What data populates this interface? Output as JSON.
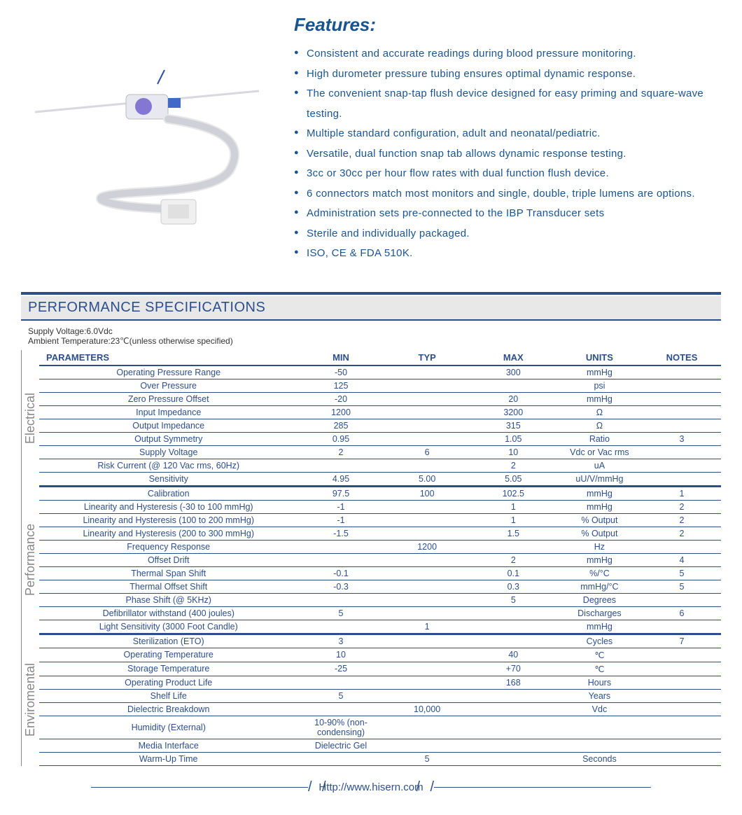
{
  "colors": {
    "primary": "#1a5490",
    "tableBlue": "#2c4f8c",
    "grayLabel": "#888888",
    "bgGray": "#e8e8e8",
    "white": "#ffffff"
  },
  "features": {
    "title": "Features:",
    "items": [
      "Consistent and accurate readings during blood pressure monitoring.",
      "High durometer pressure tubing ensures optimal dynamic response.",
      "The convenient snap-tap flush device designed for easy priming and square-wave testing.",
      "Multiple standard configuration, adult and neonatal/pediatric.",
      "Versatile, dual function snap tab allows dynamic response testing.",
      "3cc or 30cc per hour flow rates with dual function flush device.",
      "6 connectors match most monitors and single, double, triple lumens are options.",
      "Administration sets pre-connected to the IBP Transducer sets",
      "Sterile and individually packaged.",
      "ISO, CE & FDA 510K."
    ]
  },
  "specSection": {
    "title": "PERFORMANCE SPECIFICATIONS",
    "conditions": [
      "Supply Voltage:6.0Vdc",
      "Ambient Temperature:23℃(unless otherwise specified)"
    ],
    "headers": [
      "PARAMETERS",
      "MIN",
      "TYP",
      "MAX",
      "UNITS",
      "NOTES"
    ],
    "categories": [
      {
        "label": "Electrical",
        "rows": [
          {
            "param": "Operating Pressure Range",
            "min": "-50",
            "typ": "",
            "max": "300",
            "units": "mmHg",
            "notes": ""
          },
          {
            "param": "Over  Pressure",
            "min": "125",
            "typ": "",
            "max": "",
            "units": "psi",
            "notes": ""
          },
          {
            "param": "Zero Pressure Offset",
            "min": "-20",
            "typ": "",
            "max": "20",
            "units": "mmHg",
            "notes": ""
          },
          {
            "param": "Input Impedance",
            "min": "1200",
            "typ": "",
            "max": "3200",
            "units": "Ω",
            "notes": ""
          },
          {
            "param": "Output Impedance",
            "min": "285",
            "typ": "",
            "max": "315",
            "units": "Ω",
            "notes": ""
          },
          {
            "param": "Output Symmetry",
            "min": "0.95",
            "typ": "",
            "max": "1.05",
            "units": "Ratio",
            "notes": "3"
          },
          {
            "param": "Supply Voltage",
            "min": "2",
            "typ": "6",
            "max": "10",
            "units": "Vdc or Vac rms",
            "notes": ""
          },
          {
            "param": "Risk Current (@ 120 Vac rms, 60Hz)",
            "min": "",
            "typ": "",
            "max": "2",
            "units": "uA",
            "notes": ""
          },
          {
            "param": "Sensitivity",
            "min": "4.95",
            "typ": "5.00",
            "max": "5.05",
            "units": "uU/V/mmHg",
            "notes": ""
          }
        ]
      },
      {
        "label": "Performance",
        "rows": [
          {
            "param": "Calibration",
            "min": "97.5",
            "typ": "100",
            "max": "102.5",
            "units": "mmHg",
            "notes": "1"
          },
          {
            "param": "Linearity and Hysteresis (-30 to 100 mmHg)",
            "min": "-1",
            "typ": "",
            "max": "1",
            "units": "mmHg",
            "notes": "2"
          },
          {
            "param": "Linearity and Hysteresis (100 to 200 mmHg)",
            "min": "-1",
            "typ": "",
            "max": "1",
            "units": "% Output",
            "notes": "2"
          },
          {
            "param": "Linearity and Hysteresis (200 to 300 mmHg)",
            "min": "-1.5",
            "typ": "",
            "max": "1.5",
            "units": "% Output",
            "notes": "2"
          },
          {
            "param": "Frequency Response",
            "min": "",
            "typ": "1200",
            "max": "",
            "units": "Hz",
            "notes": ""
          },
          {
            "param": "Offset Drift",
            "min": "",
            "typ": "",
            "max": "2",
            "units": "mmHg",
            "notes": "4"
          },
          {
            "param": "Thermal Span Shift",
            "min": "-0.1",
            "typ": "",
            "max": "0.1",
            "units": "%/°C",
            "notes": "5"
          },
          {
            "param": "Thermal Offset Shift",
            "min": "-0.3",
            "typ": "",
            "max": "0.3",
            "units": "mmHg/°C",
            "notes": "5"
          },
          {
            "param": "Phase Shift (@ 5KHz)",
            "min": "",
            "typ": "",
            "max": "5",
            "units": "Degrees",
            "notes": ""
          },
          {
            "param": "Defibrillator withstand (400 joules)",
            "min": "5",
            "typ": "",
            "max": "",
            "units": "Discharges",
            "notes": "6"
          },
          {
            "param": "Light Sensitivity (3000 Foot Candle)",
            "min": "",
            "typ": "1",
            "max": "",
            "units": "mmHg",
            "notes": ""
          }
        ]
      },
      {
        "label": "Enviromental",
        "rows": [
          {
            "param": "Sterilization (ETO)",
            "min": "3",
            "typ": "",
            "max": "",
            "units": "Cycles",
            "notes": "7"
          },
          {
            "param": "Operating Temperature",
            "min": "10",
            "typ": "",
            "max": "40",
            "units": "℃",
            "notes": ""
          },
          {
            "param": "Storage Temperature",
            "min": "-25",
            "typ": "",
            "max": "+70",
            "units": "℃",
            "notes": ""
          },
          {
            "param": "Operating Product Life",
            "min": "",
            "typ": "",
            "max": "168",
            "units": "Hours",
            "notes": ""
          },
          {
            "param": "Shelf Life",
            "min": "5",
            "typ": "",
            "max": "",
            "units": "Years",
            "notes": ""
          },
          {
            "param": "Dielectric Breakdown",
            "min": "",
            "typ": "10,000",
            "max": "",
            "units": "Vdc",
            "notes": ""
          },
          {
            "param": "Humidity (External)",
            "min": "10-90% (non-condensing)",
            "typ": "",
            "max": "",
            "units": "",
            "notes": ""
          },
          {
            "param": "Media Interface",
            "min": "Dielectric Gel",
            "typ": "",
            "max": "",
            "units": "",
            "notes": ""
          },
          {
            "param": "Warm-Up Time",
            "min": "",
            "typ": "5",
            "max": "",
            "units": "Seconds",
            "notes": ""
          }
        ]
      }
    ]
  },
  "footer": {
    "url": "Http://www.hisern.com"
  }
}
